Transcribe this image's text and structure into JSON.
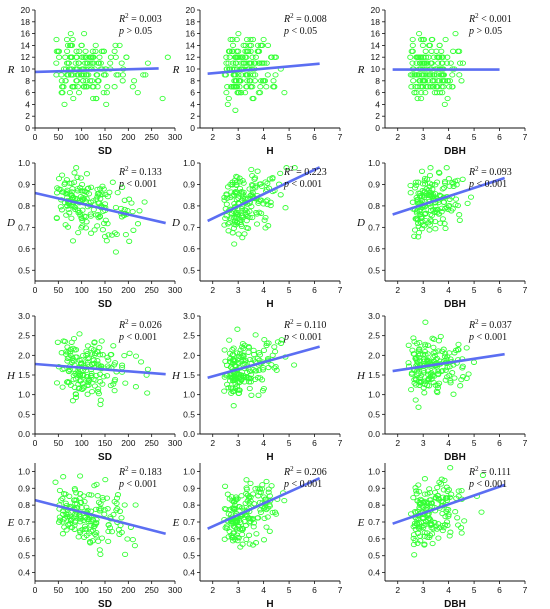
{
  "colors": {
    "point": "#33ff33",
    "fit": "#5b6ef2",
    "axis": "#111111"
  },
  "chart_data": [
    {
      "type": "scatter",
      "xlabel": "SD",
      "ylabel": "R",
      "xlim": [
        0,
        300
      ],
      "ylim": [
        0,
        20
      ],
      "xticks": [
        0,
        50,
        100,
        150,
        200,
        250,
        300
      ],
      "yticks": [
        0,
        2,
        4,
        6,
        8,
        10,
        12,
        14,
        16,
        18,
        20
      ],
      "ytick_labels": [
        "0",
        "2",
        "4",
        "6",
        "8",
        "10",
        "12",
        "14",
        "16",
        "18",
        "20"
      ],
      "r2_label": "R",
      "r2_sup": "2",
      "r2_text": " = 0.003",
      "p_label": "p",
      "p_text": " > 0.05",
      "fit": [
        [
          0,
          9.5
        ],
        [
          265,
          10.1
        ]
      ]
    },
    {
      "type": "scatter",
      "xlabel": "H",
      "ylabel": "R",
      "xlim": [
        1.5,
        7
      ],
      "ylim": [
        0,
        20
      ],
      "xticks": [
        2,
        3,
        4,
        5,
        6,
        7
      ],
      "yticks": [
        0,
        2,
        4,
        6,
        8,
        10,
        12,
        14,
        16,
        18,
        20
      ],
      "ytick_labels": [
        "0",
        "2",
        "4",
        "6",
        "8",
        "10",
        "12",
        "14",
        "16",
        "18",
        "20"
      ],
      "r2_label": "R",
      "r2_sup": "2",
      "r2_text": " = 0.008",
      "p_label": "p",
      "p_text": " < 0.05",
      "fit": [
        [
          1.8,
          9.2
        ],
        [
          6.2,
          10.9
        ]
      ]
    },
    {
      "type": "scatter",
      "xlabel": "DBH",
      "ylabel": "R",
      "xlim": [
        1.5,
        7
      ],
      "ylim": [
        0,
        20
      ],
      "xticks": [
        2,
        3,
        4,
        5,
        6,
        7
      ],
      "yticks": [
        0,
        2,
        4,
        6,
        8,
        10,
        12,
        14,
        16,
        18,
        20
      ],
      "ytick_labels": [
        "0",
        "2",
        "4",
        "6",
        "8",
        "10",
        "12",
        "14",
        "16",
        "18",
        "20"
      ],
      "r2_label": "R",
      "r2_sup": "2",
      "r2_text": " < 0.001",
      "p_label": "p",
      "p_text": " > 0.05",
      "fit": [
        [
          1.8,
          9.9
        ],
        [
          6.0,
          9.9
        ]
      ]
    },
    {
      "type": "scatter",
      "xlabel": "SD",
      "ylabel": "D",
      "xlim": [
        0,
        300
      ],
      "ylim": [
        0.45,
        1.0
      ],
      "xticks": [
        0,
        50,
        100,
        150,
        200,
        250,
        300
      ],
      "yticks": [
        0.5,
        0.6,
        0.7,
        0.8,
        0.9,
        1.0
      ],
      "ytick_labels": [
        "0.5",
        "0.6",
        "0.7",
        "0.8",
        "0.9",
        "1.0"
      ],
      "r2_label": "R",
      "r2_sup": "2",
      "r2_text": " = 0.133",
      "p_label": "p",
      "p_text": " < 0.001",
      "fit": [
        [
          0,
          0.86
        ],
        [
          280,
          0.72
        ]
      ]
    },
    {
      "type": "scatter",
      "xlabel": "H",
      "ylabel": "D",
      "xlim": [
        1.5,
        7
      ],
      "ylim": [
        0.45,
        1.0
      ],
      "xticks": [
        2,
        3,
        4,
        5,
        6,
        7
      ],
      "yticks": [
        0.5,
        0.6,
        0.7,
        0.8,
        0.9,
        1.0
      ],
      "ytick_labels": [
        "0.5",
        "0.6",
        "0.7",
        "0.8",
        "0.9",
        "1.0"
      ],
      "r2_label": "R",
      "r2_sup": "2",
      "r2_text": " = 0.223",
      "p_label": "p",
      "p_text": " < 0.001",
      "fit": [
        [
          1.8,
          0.73
        ],
        [
          6.2,
          0.98
        ]
      ]
    },
    {
      "type": "scatter",
      "xlabel": "DBH",
      "ylabel": "D",
      "xlim": [
        1.5,
        7
      ],
      "ylim": [
        0.45,
        1.0
      ],
      "xticks": [
        2,
        3,
        4,
        5,
        6,
        7
      ],
      "yticks": [
        0.5,
        0.6,
        0.7,
        0.8,
        0.9,
        1.0
      ],
      "ytick_labels": [
        "0.5",
        "0.6",
        "0.7",
        "0.8",
        "0.9",
        "1.0"
      ],
      "r2_label": "R",
      "r2_sup": "2",
      "r2_text": " = 0.093",
      "p_label": "p",
      "p_text": " < 0.001",
      "fit": [
        [
          1.8,
          0.76
        ],
        [
          6.2,
          0.93
        ]
      ]
    },
    {
      "type": "scatter",
      "xlabel": "SD",
      "ylabel": "H",
      "xlim": [
        0,
        300
      ],
      "ylim": [
        0.0,
        3.0
      ],
      "xticks": [
        0,
        50,
        100,
        150,
        200,
        250,
        300
      ],
      "yticks": [
        0.0,
        0.5,
        1.0,
        1.5,
        2.0,
        2.5,
        3.0
      ],
      "ytick_labels": [
        "0.0",
        "0.5",
        "1.0",
        "1.5",
        "2.0",
        "2.5",
        "3.0"
      ],
      "r2_label": "R",
      "r2_sup": "2",
      "r2_text": " = 0.026",
      "p_label": "p",
      "p_text": " < 0.001",
      "fit": [
        [
          0,
          1.78
        ],
        [
          280,
          1.52
        ]
      ]
    },
    {
      "type": "scatter",
      "xlabel": "H",
      "ylabel": "H",
      "xlim": [
        1.5,
        7
      ],
      "ylim": [
        0.0,
        3.0
      ],
      "xticks": [
        2,
        3,
        4,
        5,
        6,
        7
      ],
      "yticks": [
        0.0,
        0.5,
        1.0,
        1.5,
        2.0,
        2.5,
        3.0
      ],
      "ytick_labels": [
        "0.0",
        "0.5",
        "1.0",
        "1.5",
        "2.0",
        "2.5",
        "3.0"
      ],
      "r2_label": "R",
      "r2_sup": "2",
      "r2_text": " = 0.110",
      "p_label": "p",
      "p_text": " < 0.001",
      "fit": [
        [
          1.8,
          1.43
        ],
        [
          6.2,
          2.22
        ]
      ]
    },
    {
      "type": "scatter",
      "xlabel": "DBH",
      "ylabel": "H",
      "xlim": [
        1.5,
        7
      ],
      "ylim": [
        0.0,
        3.0
      ],
      "xticks": [
        2,
        3,
        4,
        5,
        6,
        7
      ],
      "yticks": [
        0.0,
        0.5,
        1.0,
        1.5,
        2.0,
        2.5,
        3.0
      ],
      "ytick_labels": [
        "0.0",
        "0.5",
        "1.0",
        "1.5",
        "2.0",
        "2.5",
        "3.0"
      ],
      "r2_label": "R",
      "r2_sup": "2",
      "r2_text": " = 0.037",
      "p_label": "p",
      "p_text": " < 0.001",
      "fit": [
        [
          1.8,
          1.6
        ],
        [
          6.2,
          2.03
        ]
      ]
    },
    {
      "type": "scatter",
      "xlabel": "SD",
      "ylabel": "E",
      "xlim": [
        0,
        300
      ],
      "ylim": [
        0.35,
        1.05
      ],
      "xticks": [
        0,
        50,
        100,
        150,
        200,
        250,
        300
      ],
      "yticks": [
        0.4,
        0.5,
        0.6,
        0.7,
        0.8,
        0.9,
        1.0
      ],
      "ytick_labels": [
        "0.4",
        "0.5",
        "0.6",
        "0.7",
        "0.8",
        "0.9",
        "1.0"
      ],
      "r2_label": "R",
      "r2_sup": "2",
      "r2_text": " = 0.183",
      "p_label": "p",
      "p_text": " < 0.001",
      "fit": [
        [
          0,
          0.83
        ],
        [
          280,
          0.63
        ]
      ]
    },
    {
      "type": "scatter",
      "xlabel": "H",
      "ylabel": "E",
      "xlim": [
        1.5,
        7
      ],
      "ylim": [
        0.35,
        1.05
      ],
      "xticks": [
        2,
        3,
        4,
        5,
        6,
        7
      ],
      "yticks": [
        0.4,
        0.5,
        0.6,
        0.7,
        0.8,
        0.9,
        1.0
      ],
      "ytick_labels": [
        "0.4",
        "0.5",
        "0.6",
        "0.7",
        "0.8",
        "0.9",
        "1.0"
      ],
      "r2_label": "R",
      "r2_sup": "2",
      "r2_text": " = 0.206",
      "p_label": "p",
      "p_text": " < 0.001",
      "fit": [
        [
          1.8,
          0.66
        ],
        [
          6.2,
          0.96
        ]
      ]
    },
    {
      "type": "scatter",
      "xlabel": "DBH",
      "ylabel": "E",
      "xlim": [
        1.5,
        7
      ],
      "ylim": [
        0.35,
        1.05
      ],
      "xticks": [
        2,
        3,
        4,
        5,
        6,
        7
      ],
      "yticks": [
        0.4,
        0.5,
        0.6,
        0.7,
        0.8,
        0.9,
        1.0
      ],
      "ytick_labels": [
        "0.4",
        "0.5",
        "0.6",
        "0.7",
        "0.8",
        "0.9",
        "1.0"
      ],
      "r2_label": "R",
      "r2_sup": "2",
      "r2_text": " = 0.111",
      "p_label": "p",
      "p_text": " < 0.001",
      "fit": [
        [
          1.8,
          0.69
        ],
        [
          6.2,
          0.92
        ]
      ]
    }
  ]
}
